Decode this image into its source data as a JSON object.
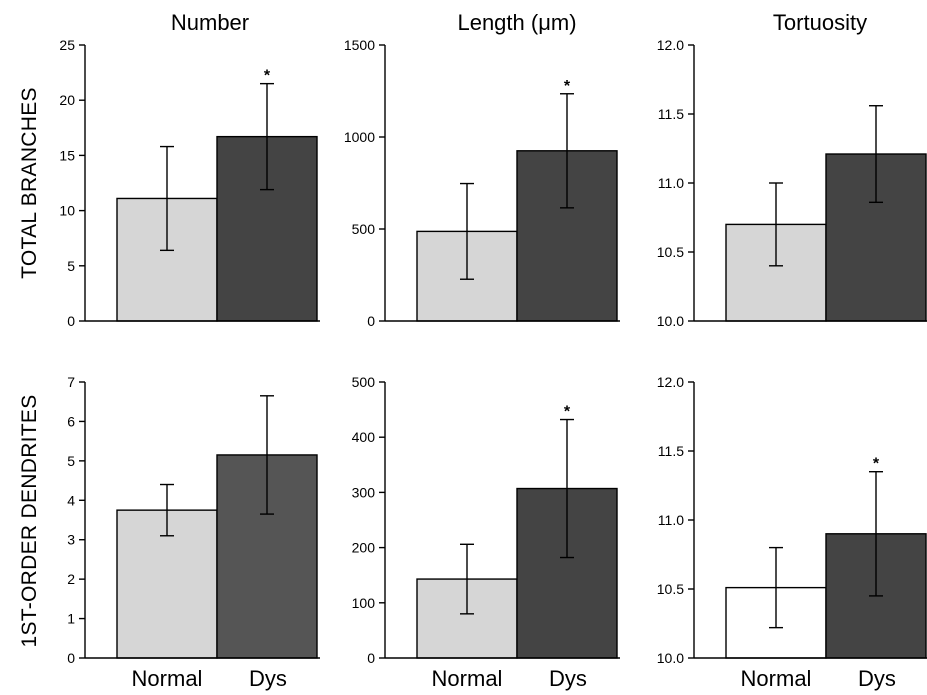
{
  "column_titles": [
    "Number",
    "Length (μm)",
    "Tortuosity"
  ],
  "row_labels": [
    "TOTAL BRANCHES",
    "1ST-ORDER DENDRITES"
  ],
  "categories": [
    "Normal",
    "Dys"
  ],
  "colors": {
    "normal": "#d6d6d6",
    "normal_white": "#ffffff",
    "dys_dark": "#444444",
    "dys_mid": "#555555"
  },
  "chart_data": [
    {
      "type": "bar",
      "row": "TOTAL BRANCHES",
      "title": "Number",
      "categories": [
        "Normal",
        "Dys"
      ],
      "values": [
        11.1,
        16.7
      ],
      "errors": [
        4.7,
        4.8
      ],
      "significance": [
        "",
        "*"
      ],
      "ylim": [
        0,
        25
      ],
      "yticks": [
        "0",
        "5",
        "10",
        "15",
        "20",
        "25"
      ]
    },
    {
      "type": "bar",
      "row": "TOTAL BRANCHES",
      "title": "Length (μm)",
      "categories": [
        "Normal",
        "Dys"
      ],
      "values": [
        487,
        925
      ],
      "errors": [
        260,
        310
      ],
      "significance": [
        "",
        "*"
      ],
      "ylim": [
        0,
        1500
      ],
      "yticks": [
        "0",
        "500",
        "1000",
        "1500"
      ]
    },
    {
      "type": "bar",
      "row": "TOTAL BRANCHES",
      "title": "Tortuosity",
      "categories": [
        "Normal",
        "Dys"
      ],
      "values": [
        10.7,
        11.21
      ],
      "errors": [
        0.3,
        0.35
      ],
      "significance": [
        "",
        ""
      ],
      "ylim": [
        10.0,
        12.0
      ],
      "yticks": [
        "10.0",
        "10.5",
        "11.0",
        "11.5",
        "12.0"
      ]
    },
    {
      "type": "bar",
      "row": "1ST-ORDER DENDRITES",
      "title": "Number",
      "categories": [
        "Normal",
        "Dys"
      ],
      "values": [
        3.75,
        5.15
      ],
      "errors": [
        0.65,
        1.5
      ],
      "significance": [
        "",
        ""
      ],
      "ylim": [
        0,
        7
      ],
      "yticks": [
        "0",
        "1",
        "2",
        "3",
        "4",
        "5",
        "6",
        "7"
      ]
    },
    {
      "type": "bar",
      "row": "1ST-ORDER DENDRITES",
      "title": "Length (μm)",
      "categories": [
        "Normal",
        "Dys"
      ],
      "values": [
        143,
        307
      ],
      "errors": [
        63,
        125
      ],
      "significance": [
        "",
        "*"
      ],
      "ylim": [
        0,
        500
      ],
      "yticks": [
        "0",
        "100",
        "200",
        "300",
        "400",
        "500"
      ]
    },
    {
      "type": "bar",
      "row": "1ST-ORDER DENDRITES",
      "title": "Tortuosity",
      "categories": [
        "Normal",
        "Dys"
      ],
      "values": [
        10.51,
        10.9
      ],
      "errors": [
        0.29,
        0.45
      ],
      "significance": [
        "",
        "*"
      ],
      "ylim": [
        10.0,
        12.0
      ],
      "yticks": [
        "10.0",
        "10.5",
        "11.0",
        "11.5",
        "12.0"
      ]
    }
  ]
}
